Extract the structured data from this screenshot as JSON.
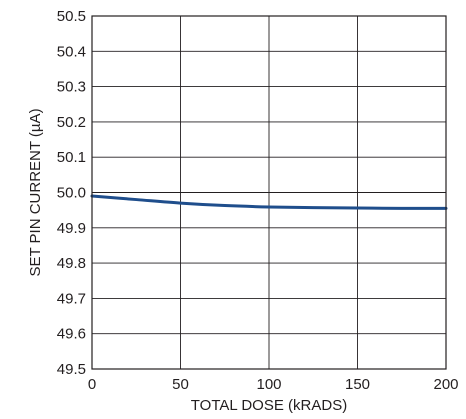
{
  "chart_data": {
    "type": "line",
    "xlabel": "TOTAL DOSE (kRADS)",
    "ylabel": "SET PIN CURRENT (µA)",
    "xlim": [
      0,
      200
    ],
    "ylim": [
      49.5,
      50.5
    ],
    "x_ticks": [
      0,
      50,
      100,
      150,
      200
    ],
    "y_ticks": [
      50.5,
      50.4,
      50.3,
      50.2,
      50.1,
      50.0,
      49.9,
      49.8,
      49.7,
      49.6,
      49.5
    ],
    "x_tick_labels": [
      "0",
      "50",
      "100",
      "150",
      "200"
    ],
    "y_tick_labels": [
      "50.5",
      "50.4",
      "50.3",
      "50.2",
      "50.1",
      "50.0",
      "49.9",
      "49.8",
      "49.7",
      "49.6",
      "49.5"
    ],
    "grid": true,
    "legend": "none",
    "series": [
      {
        "color": "#1f4e8c",
        "x": [
          0,
          25,
          50,
          75,
          100,
          125,
          150,
          175,
          200
        ],
        "y": [
          49.99,
          49.98,
          49.97,
          49.963,
          49.959,
          49.957,
          49.956,
          49.955,
          49.955
        ]
      }
    ]
  }
}
